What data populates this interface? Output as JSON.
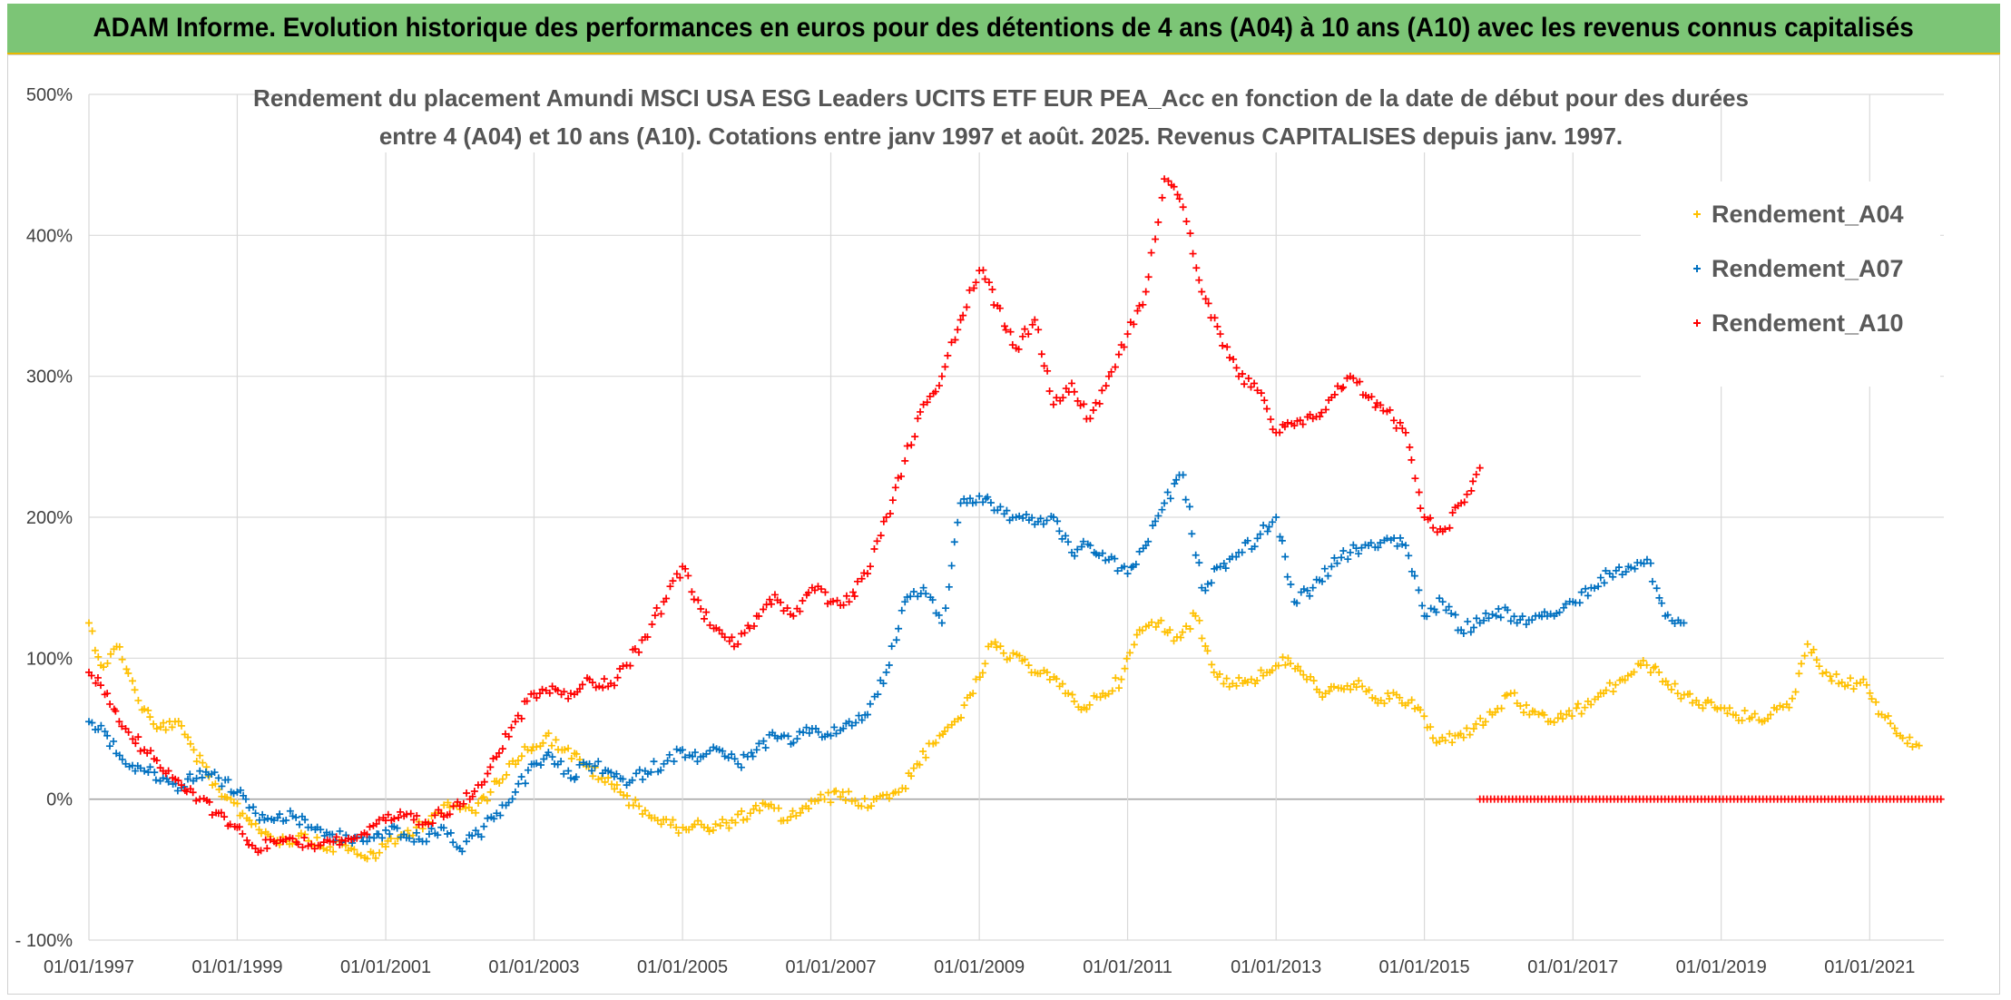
{
  "banner": {
    "title": "ADAM Informe. Evolution historique des performances en euros pour des détentions de 4 ans (A04) à 10 ans (A10) avec les revenus connus capitalisés"
  },
  "chart_data": {
    "type": "scatter",
    "title_lines": [
      "Rendement du placement Amundi MSCI USA ESG Leaders UCITS ETF EUR PEA_Acc en fonction de la date de début pour des durées",
      "entre 4 (A04) et 10 ans (A10). Cotations entre janv 1997 et août. 2025. Revenus CAPITALISES depuis janv. 1997."
    ],
    "xlabel": "",
    "ylabel": "",
    "ylim": [
      -100,
      500
    ],
    "y_unit": "%",
    "y_ticks": [
      -100,
      0,
      100,
      200,
      300,
      400,
      500
    ],
    "y_tick_labels": [
      "- 100%",
      "0%",
      "100%",
      "200%",
      "300%",
      "400%",
      "500%"
    ],
    "x_range": [
      "1997-01-01",
      "2022-01-01"
    ],
    "x_tick_labels": [
      "01/01/1997",
      "01/01/1999",
      "01/01/2001",
      "01/01/2003",
      "01/01/2005",
      "01/01/2007",
      "01/01/2009",
      "01/01/2011",
      "01/01/2013",
      "01/01/2015",
      "01/01/2017",
      "01/01/2019",
      "01/01/2021"
    ],
    "x_tick_dates": [
      "1997-01-01",
      "1999-01-01",
      "2001-01-01",
      "2003-01-01",
      "2005-01-01",
      "2007-01-01",
      "2009-01-01",
      "2011-01-01",
      "2013-01-01",
      "2015-01-01",
      "2017-01-01",
      "2019-01-01",
      "2021-01-01"
    ],
    "grid": true,
    "legend_position": "right",
    "marker": "+",
    "series": [
      {
        "name": "Rendement_A04",
        "color": "#ffc000",
        "points": [
          [
            "1997-01-01",
            125
          ],
          [
            "1997-03-01",
            95
          ],
          [
            "1997-06-01",
            108
          ],
          [
            "1997-09-01",
            70
          ],
          [
            "1997-12-01",
            50
          ],
          [
            "1998-03-01",
            55
          ],
          [
            "1998-06-01",
            35
          ],
          [
            "1998-09-01",
            10
          ],
          [
            "1998-12-01",
            0
          ],
          [
            "1999-03-01",
            -15
          ],
          [
            "1999-06-01",
            -25
          ],
          [
            "1999-09-01",
            -30
          ],
          [
            "1999-12-01",
            -25
          ],
          [
            "2000-03-01",
            -35
          ],
          [
            "2000-06-01",
            -32
          ],
          [
            "2000-09-01",
            -40
          ],
          [
            "2000-12-01",
            -38
          ],
          [
            "2001-03-01",
            -28
          ],
          [
            "2001-06-01",
            -20
          ],
          [
            "2001-09-01",
            -10
          ],
          [
            "2001-12-01",
            -5
          ],
          [
            "2002-03-01",
            -8
          ],
          [
            "2002-06-01",
            5
          ],
          [
            "2002-09-01",
            25
          ],
          [
            "2002-12-01",
            35
          ],
          [
            "2003-03-01",
            45
          ],
          [
            "2003-06-01",
            35
          ],
          [
            "2003-09-01",
            25
          ],
          [
            "2003-12-01",
            15
          ],
          [
            "2004-03-01",
            5
          ],
          [
            "2004-06-01",
            -5
          ],
          [
            "2004-09-01",
            -15
          ],
          [
            "2004-12-01",
            -20
          ],
          [
            "2005-03-01",
            -18
          ],
          [
            "2005-06-01",
            -22
          ],
          [
            "2005-09-01",
            -15
          ],
          [
            "2005-12-01",
            -10
          ],
          [
            "2006-03-01",
            -5
          ],
          [
            "2006-06-01",
            -15
          ],
          [
            "2006-09-01",
            -5
          ],
          [
            "2006-12-01",
            0
          ],
          [
            "2007-03-01",
            5
          ],
          [
            "2007-06-01",
            -5
          ],
          [
            "2007-09-01",
            2
          ],
          [
            "2007-12-01",
            5
          ],
          [
            "2008-03-01",
            25
          ],
          [
            "2008-06-01",
            40
          ],
          [
            "2008-09-01",
            55
          ],
          [
            "2008-12-01",
            75
          ],
          [
            "2009-03-01",
            110
          ],
          [
            "2009-06-01",
            100
          ],
          [
            "2009-09-01",
            95
          ],
          [
            "2009-12-01",
            90
          ],
          [
            "2010-03-01",
            75
          ],
          [
            "2010-06-01",
            65
          ],
          [
            "2010-09-01",
            75
          ],
          [
            "2010-12-01",
            85
          ],
          [
            "2011-03-01",
            120
          ],
          [
            "2011-06-01",
            125
          ],
          [
            "2011-09-01",
            115
          ],
          [
            "2011-12-01",
            130
          ],
          [
            "2012-03-01",
            90
          ],
          [
            "2012-06-01",
            82
          ],
          [
            "2012-09-01",
            85
          ],
          [
            "2012-12-01",
            90
          ],
          [
            "2013-03-01",
            100
          ],
          [
            "2013-06-01",
            85
          ],
          [
            "2013-09-01",
            75
          ],
          [
            "2013-12-01",
            78
          ],
          [
            "2014-03-01",
            80
          ],
          [
            "2014-06-01",
            70
          ],
          [
            "2014-09-01",
            72
          ],
          [
            "2014-12-01",
            65
          ],
          [
            "2015-03-01",
            40
          ],
          [
            "2015-06-01",
            45
          ],
          [
            "2015-09-01",
            50
          ],
          [
            "2015-12-01",
            60
          ],
          [
            "2016-03-01",
            75
          ],
          [
            "2016-06-01",
            60
          ],
          [
            "2016-09-01",
            55
          ],
          [
            "2016-12-01",
            60
          ],
          [
            "2017-03-01",
            65
          ],
          [
            "2017-06-01",
            75
          ],
          [
            "2017-09-01",
            85
          ],
          [
            "2017-12-01",
            95
          ],
          [
            "2018-03-01",
            90
          ],
          [
            "2018-06-01",
            75
          ],
          [
            "2018-09-01",
            70
          ],
          [
            "2018-12-01",
            65
          ],
          [
            "2019-03-01",
            60
          ],
          [
            "2019-06-01",
            58
          ],
          [
            "2019-09-01",
            60
          ],
          [
            "2019-12-01",
            65
          ],
          [
            "2020-03-01",
            110
          ],
          [
            "2020-06-01",
            90
          ],
          [
            "2020-09-01",
            80
          ],
          [
            "2020-12-01",
            85
          ],
          [
            "2021-03-01",
            60
          ],
          [
            "2021-06-01",
            45
          ],
          [
            "2021-09-01",
            38
          ]
        ]
      },
      {
        "name": "Rendement_A07",
        "color": "#0070c0",
        "points": [
          [
            "1997-01-01",
            55
          ],
          [
            "1997-04-01",
            45
          ],
          [
            "1997-07-01",
            25
          ],
          [
            "1997-10-01",
            20
          ],
          [
            "1998-01-01",
            15
          ],
          [
            "1998-04-01",
            8
          ],
          [
            "1998-07-01",
            20
          ],
          [
            "1998-10-01",
            15
          ],
          [
            "1999-01-01",
            5
          ],
          [
            "1999-04-01",
            -10
          ],
          [
            "1999-07-01",
            -15
          ],
          [
            "1999-10-01",
            -12
          ],
          [
            "2000-01-01",
            -20
          ],
          [
            "2000-04-01",
            -25
          ],
          [
            "2000-07-01",
            -28
          ],
          [
            "2000-10-01",
            -30
          ],
          [
            "2001-01-01",
            -22
          ],
          [
            "2001-04-01",
            -25
          ],
          [
            "2001-07-01",
            -30
          ],
          [
            "2001-10-01",
            -20
          ],
          [
            "2002-01-01",
            -35
          ],
          [
            "2002-04-01",
            -25
          ],
          [
            "2002-07-01",
            -10
          ],
          [
            "2002-10-01",
            5
          ],
          [
            "2003-01-01",
            25
          ],
          [
            "2003-04-01",
            30
          ],
          [
            "2003-07-01",
            15
          ],
          [
            "2003-10-01",
            25
          ],
          [
            "2004-01-01",
            20
          ],
          [
            "2004-04-01",
            10
          ],
          [
            "2004-07-01",
            20
          ],
          [
            "2004-10-01",
            25
          ],
          [
            "2005-01-01",
            35
          ],
          [
            "2005-04-01",
            30
          ],
          [
            "2005-07-01",
            35
          ],
          [
            "2005-10-01",
            25
          ],
          [
            "2006-01-01",
            35
          ],
          [
            "2006-04-01",
            45
          ],
          [
            "2006-07-01",
            40
          ],
          [
            "2006-10-01",
            50
          ],
          [
            "2007-01-01",
            45
          ],
          [
            "2007-04-01",
            55
          ],
          [
            "2007-07-01",
            60
          ],
          [
            "2007-10-01",
            90
          ],
          [
            "2008-01-01",
            140
          ],
          [
            "2008-04-01",
            150
          ],
          [
            "2008-07-01",
            125
          ],
          [
            "2008-10-01",
            210
          ],
          [
            "2009-01-01",
            215
          ],
          [
            "2009-04-01",
            205
          ],
          [
            "2009-07-01",
            200
          ],
          [
            "2009-10-01",
            195
          ],
          [
            "2010-01-01",
            200
          ],
          [
            "2010-04-01",
            175
          ],
          [
            "2010-07-01",
            180
          ],
          [
            "2010-10-01",
            170
          ],
          [
            "2011-01-01",
            160
          ],
          [
            "2011-04-01",
            180
          ],
          [
            "2011-07-01",
            210
          ],
          [
            "2011-10-01",
            230
          ],
          [
            "2012-01-01",
            150
          ],
          [
            "2012-04-01",
            165
          ],
          [
            "2012-07-01",
            175
          ],
          [
            "2012-10-01",
            185
          ],
          [
            "2013-01-01",
            200
          ],
          [
            "2013-04-01",
            140
          ],
          [
            "2013-07-01",
            150
          ],
          [
            "2013-10-01",
            165
          ],
          [
            "2014-01-01",
            175
          ],
          [
            "2014-04-01",
            180
          ],
          [
            "2014-07-01",
            185
          ],
          [
            "2014-10-01",
            180
          ],
          [
            "2015-01-01",
            130
          ],
          [
            "2015-04-01",
            140
          ],
          [
            "2015-07-01",
            120
          ],
          [
            "2015-10-01",
            125
          ],
          [
            "2016-01-01",
            135
          ],
          [
            "2016-04-01",
            125
          ],
          [
            "2016-07-01",
            130
          ],
          [
            "2016-10-01",
            130
          ],
          [
            "2017-01-01",
            140
          ],
          [
            "2017-04-01",
            150
          ],
          [
            "2017-07-01",
            160
          ],
          [
            "2017-10-01",
            165
          ],
          [
            "2018-01-01",
            170
          ],
          [
            "2018-04-01",
            130
          ],
          [
            "2018-07-01",
            125
          ]
        ]
      },
      {
        "name": "Rendement_A10",
        "color": "#ff0000",
        "points": [
          [
            "1997-01-01",
            90
          ],
          [
            "1997-04-01",
            75
          ],
          [
            "1997-07-01",
            50
          ],
          [
            "1997-10-01",
            35
          ],
          [
            "1998-01-01",
            20
          ],
          [
            "1998-04-01",
            10
          ],
          [
            "1998-07-01",
            0
          ],
          [
            "1998-10-01",
            -10
          ],
          [
            "1999-01-01",
            -20
          ],
          [
            "1999-04-01",
            -35
          ],
          [
            "1999-07-01",
            -30
          ],
          [
            "1999-10-01",
            -28
          ],
          [
            "2000-01-01",
            -32
          ],
          [
            "2000-04-01",
            -30
          ],
          [
            "2000-07-01",
            -28
          ],
          [
            "2000-10-01",
            -25
          ],
          [
            "2001-01-01",
            -15
          ],
          [
            "2001-04-01",
            -12
          ],
          [
            "2001-07-01",
            -18
          ],
          [
            "2001-10-01",
            -10
          ],
          [
            "2002-01-01",
            -5
          ],
          [
            "2002-04-01",
            10
          ],
          [
            "2002-07-01",
            30
          ],
          [
            "2002-10-01",
            55
          ],
          [
            "2003-01-01",
            75
          ],
          [
            "2003-04-01",
            80
          ],
          [
            "2003-07-01",
            75
          ],
          [
            "2003-10-01",
            85
          ],
          [
            "2004-01-01",
            80
          ],
          [
            "2004-04-01",
            95
          ],
          [
            "2004-07-01",
            115
          ],
          [
            "2004-10-01",
            140
          ],
          [
            "2005-01-01",
            165
          ],
          [
            "2005-04-01",
            135
          ],
          [
            "2005-07-01",
            120
          ],
          [
            "2005-10-01",
            110
          ],
          [
            "2006-01-01",
            130
          ],
          [
            "2006-04-01",
            145
          ],
          [
            "2006-07-01",
            130
          ],
          [
            "2006-10-01",
            150
          ],
          [
            "2007-01-01",
            140
          ],
          [
            "2007-04-01",
            140
          ],
          [
            "2007-07-01",
            160
          ],
          [
            "2007-10-01",
            200
          ],
          [
            "2008-01-01",
            240
          ],
          [
            "2008-04-01",
            280
          ],
          [
            "2008-07-01",
            300
          ],
          [
            "2008-10-01",
            340
          ],
          [
            "2009-01-01",
            375
          ],
          [
            "2009-04-01",
            350
          ],
          [
            "2009-07-01",
            320
          ],
          [
            "2009-10-01",
            340
          ],
          [
            "2010-01-01",
            280
          ],
          [
            "2010-04-01",
            295
          ],
          [
            "2010-07-01",
            270
          ],
          [
            "2010-10-01",
            300
          ],
          [
            "2011-01-01",
            330
          ],
          [
            "2011-04-01",
            360
          ],
          [
            "2011-07-01",
            440
          ],
          [
            "2011-10-01",
            420
          ],
          [
            "2012-01-01",
            360
          ],
          [
            "2012-04-01",
            330
          ],
          [
            "2012-07-01",
            300
          ],
          [
            "2012-10-01",
            290
          ],
          [
            "2013-01-01",
            260
          ],
          [
            "2013-04-01",
            265
          ],
          [
            "2013-07-01",
            270
          ],
          [
            "2013-10-01",
            285
          ],
          [
            "2014-01-01",
            300
          ],
          [
            "2014-04-01",
            285
          ],
          [
            "2014-07-01",
            275
          ],
          [
            "2014-10-01",
            260
          ],
          [
            "2015-01-01",
            200
          ],
          [
            "2015-04-01",
            190
          ],
          [
            "2015-07-01",
            210
          ],
          [
            "2015-10-01",
            235
          ]
        ],
        "zero_segment": {
          "start": "2015-10-01",
          "end": "2022-01-01",
          "value": 0
        }
      }
    ]
  }
}
